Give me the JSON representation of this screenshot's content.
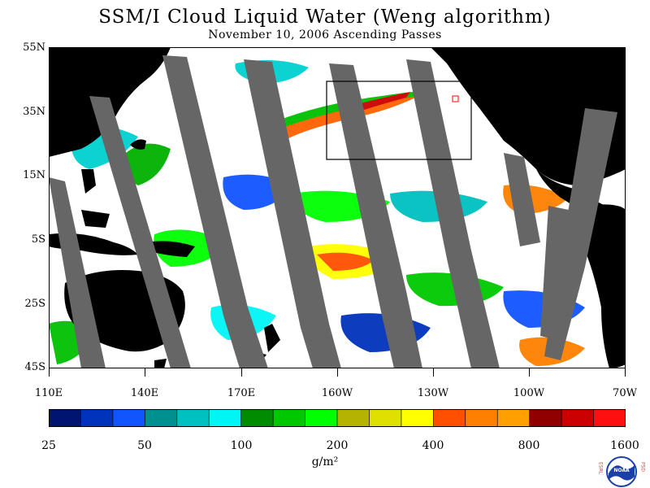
{
  "title": "SSM/I Cloud Liquid Water (Weng algorithm)",
  "subtitle": "November 10, 2006  Ascending Passes",
  "map": {
    "y_labels": [
      "55N",
      "35N",
      "15N",
      "5S",
      "25S",
      "45S"
    ],
    "x_labels": [
      "110E",
      "140E",
      "170E",
      "160W",
      "130W",
      "100W",
      "70W"
    ],
    "colors": {
      "land": "#000000",
      "no_data": "#666666",
      "background": "#ffffff",
      "box": "#000000",
      "marker": "#ff0000"
    }
  },
  "colorbar": {
    "labels": [
      "25",
      "50",
      "100",
      "200",
      "400",
      "800",
      "1600"
    ],
    "units": "g/m²",
    "colors": [
      "#001570",
      "#0033bb",
      "#1155ff",
      "#009090",
      "#00c0c0",
      "#00f5f5",
      "#008c00",
      "#00c800",
      "#00ff00",
      "#b4b400",
      "#e0e000",
      "#ffff00",
      "#ff5000",
      "#ff8000",
      "#ffa000",
      "#900000",
      "#cc0000",
      "#ff1010"
    ]
  },
  "logo": {
    "text": "NOAA",
    "left_text": "ESRL",
    "right_text": "PSD"
  }
}
